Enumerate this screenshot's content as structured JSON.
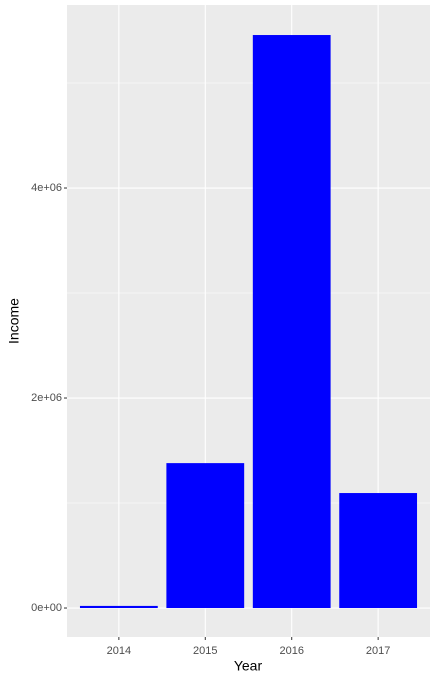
{
  "chart_data": {
    "type": "bar",
    "x_label": "Year",
    "y_label": "Income",
    "categories": [
      "2014",
      "2015",
      "2016",
      "2017"
    ],
    "values": [
      20000,
      1380000,
      5457000,
      1095000
    ],
    "color": "#0000ff",
    "ylim": [
      -276000,
      5743000
    ],
    "yticks": [
      {
        "value": 0,
        "label": "0e+00"
      },
      {
        "value": 2000000,
        "label": "2e+06"
      },
      {
        "value": 4000000,
        "label": "4e+06"
      }
    ],
    "yminorticks": [
      1000000,
      3000000,
      5000000
    ],
    "grid": true
  }
}
